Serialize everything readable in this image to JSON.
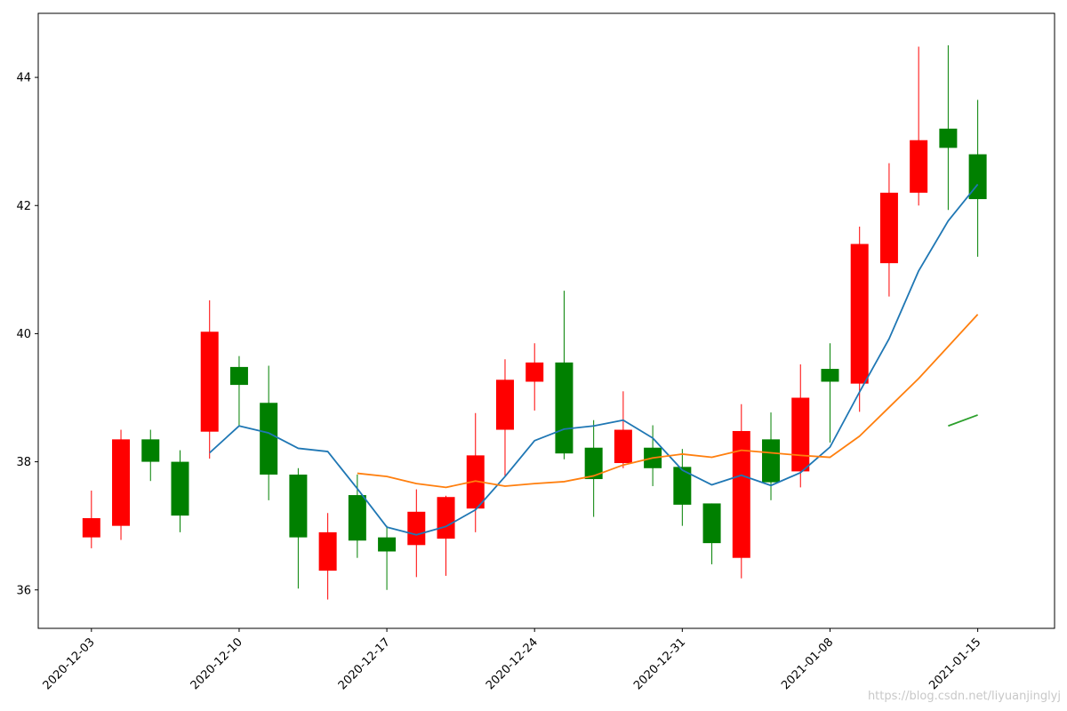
{
  "chart_data": {
    "type": "candlestick",
    "title": "",
    "xlabel": "",
    "ylabel": "",
    "ylim": [
      35.4,
      45.0
    ],
    "yticks": [
      36,
      38,
      40,
      42,
      44
    ],
    "xticks": [
      "2020-12-03",
      "2020-12-10",
      "2020-12-17",
      "2020-12-24",
      "2020-12-31",
      "2021-01-08",
      "2021-01-15"
    ],
    "xtick_positions": [
      0,
      5,
      10,
      15,
      20,
      25,
      30
    ],
    "xlim": [
      -1.8,
      32.6
    ],
    "up_color": "#ff0000",
    "down_color": "#008000",
    "candles": [
      {
        "open": 36.82,
        "close": 37.12,
        "high": 37.55,
        "low": 36.65
      },
      {
        "open": 37.0,
        "close": 38.35,
        "high": 38.5,
        "low": 36.78
      },
      {
        "open": 38.35,
        "close": 38.0,
        "high": 38.5,
        "low": 37.7
      },
      {
        "open": 38.0,
        "close": 37.16,
        "high": 38.18,
        "low": 36.9
      },
      {
        "open": 38.47,
        "close": 40.03,
        "high": 40.52,
        "low": 38.05
      },
      {
        "open": 39.48,
        "close": 39.2,
        "high": 39.65,
        "low": 38.55
      },
      {
        "open": 38.92,
        "close": 37.8,
        "high": 39.5,
        "low": 37.4
      },
      {
        "open": 37.8,
        "close": 36.82,
        "high": 37.9,
        "low": 36.02
      },
      {
        "open": 36.3,
        "close": 36.9,
        "high": 37.2,
        "low": 35.85
      },
      {
        "open": 37.48,
        "close": 36.77,
        "high": 37.8,
        "low": 36.5
      },
      {
        "open": 36.82,
        "close": 36.6,
        "high": 37.0,
        "low": 36.0
      },
      {
        "open": 36.7,
        "close": 37.22,
        "high": 37.57,
        "low": 36.2
      },
      {
        "open": 36.8,
        "close": 37.45,
        "high": 37.47,
        "low": 36.22
      },
      {
        "open": 37.27,
        "close": 38.1,
        "high": 38.76,
        "low": 36.9
      },
      {
        "open": 38.5,
        "close": 39.28,
        "high": 39.6,
        "low": 37.76
      },
      {
        "open": 39.25,
        "close": 39.55,
        "high": 39.85,
        "low": 38.8
      },
      {
        "open": 39.55,
        "close": 38.13,
        "high": 40.67,
        "low": 38.04
      },
      {
        "open": 38.22,
        "close": 37.73,
        "high": 38.65,
        "low": 37.14
      },
      {
        "open": 37.98,
        "close": 38.5,
        "high": 39.1,
        "low": 37.9
      },
      {
        "open": 38.22,
        "close": 37.9,
        "high": 38.57,
        "low": 37.62
      },
      {
        "open": 37.92,
        "close": 37.33,
        "high": 38.2,
        "low": 37.0
      },
      {
        "open": 37.35,
        "close": 36.73,
        "high": 37.35,
        "low": 36.4
      },
      {
        "open": 36.5,
        "close": 38.48,
        "high": 38.9,
        "low": 36.18
      },
      {
        "open": 38.35,
        "close": 37.68,
        "high": 38.77,
        "low": 37.4
      },
      {
        "open": 37.85,
        "close": 39.0,
        "high": 39.52,
        "low": 37.6
      },
      {
        "open": 39.45,
        "close": 39.25,
        "high": 39.85,
        "low": 38.3
      },
      {
        "open": 39.22,
        "close": 41.4,
        "high": 41.67,
        "low": 38.78
      },
      {
        "open": 41.1,
        "close": 42.2,
        "high": 42.66,
        "low": 40.58
      },
      {
        "open": 42.2,
        "close": 43.02,
        "high": 44.48,
        "low": 42.0
      },
      {
        "open": 43.2,
        "close": 42.9,
        "high": 44.5,
        "low": 41.93
      },
      {
        "open": 42.8,
        "close": 42.1,
        "high": 43.65,
        "low": 41.2
      }
    ],
    "series": [
      {
        "color": "#1f77b4",
        "start_index": 4,
        "values": [
          38.14,
          38.56,
          38.45,
          38.21,
          38.16,
          37.58,
          36.98,
          36.86,
          36.99,
          37.25,
          37.77,
          38.33,
          38.51,
          38.56,
          38.65,
          38.37,
          37.87,
          37.64,
          37.79,
          37.63,
          37.83,
          38.23,
          39.09,
          39.92,
          40.98,
          41.76,
          42.33
        ]
      },
      {
        "color": "#ff7f0e",
        "start_index": 9,
        "values": [
          37.82,
          37.77,
          37.66,
          37.6,
          37.7,
          37.62,
          37.66,
          37.69,
          37.78,
          37.95,
          38.06,
          38.12,
          38.07,
          38.18,
          38.14,
          38.1,
          38.07,
          38.4,
          38.85,
          39.3,
          39.8,
          40.3
        ]
      },
      {
        "color": "#2ca02c",
        "start_index": 29,
        "values": [
          38.56,
          38.73
        ]
      }
    ]
  },
  "watermark": "https://blog.csdn.net/liyuanjinglyj"
}
